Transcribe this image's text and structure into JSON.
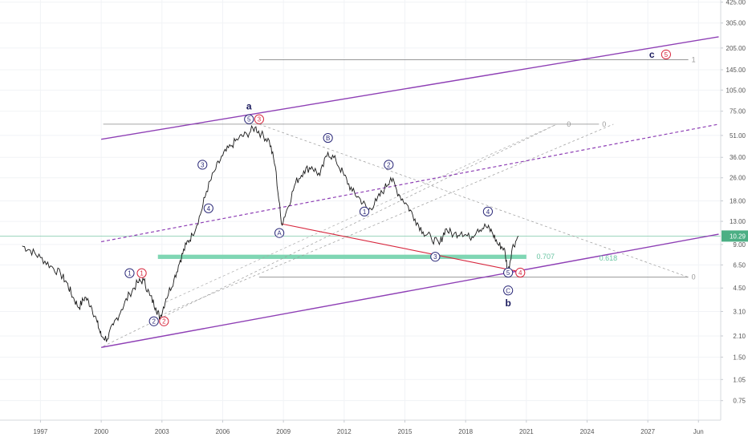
{
  "chart_data": {
    "type": "line",
    "log_scale": true,
    "grid": true,
    "x_range": [
      1995.0,
      2030.6
    ],
    "y_range": [
      0.55,
      440
    ],
    "x_ticks": [
      {
        "x": 1997.0,
        "label": "1997"
      },
      {
        "x": 2000.0,
        "label": "2000"
      },
      {
        "x": 2003.0,
        "label": "2003"
      },
      {
        "x": 2006.0,
        "label": "2006"
      },
      {
        "x": 2009.0,
        "label": "2009"
      },
      {
        "x": 2012.0,
        "label": "2012"
      },
      {
        "x": 2015.0,
        "label": "2015"
      },
      {
        "x": 2018.0,
        "label": "2018"
      },
      {
        "x": 2021.0,
        "label": "2021"
      },
      {
        "x": 2024.0,
        "label": "2024"
      },
      {
        "x": 2027.0,
        "label": "2027"
      },
      {
        "x": 2029.5,
        "label": "Jun"
      }
    ],
    "y_ticks": [
      0.75,
      1.05,
      1.5,
      2.1,
      3.1,
      4.5,
      6.5,
      9.0,
      13.0,
      18.0,
      26.0,
      36.0,
      51.0,
      75.0,
      105.0,
      145.0,
      205.0,
      305.0,
      425.0
    ],
    "last_price": {
      "value": 10.29,
      "label": "10.29"
    },
    "price_series": [
      {
        "x": 1996.1,
        "y": 8.8
      },
      {
        "x": 1996.5,
        "y": 8.2
      },
      {
        "x": 1997.0,
        "y": 7.3
      },
      {
        "x": 1997.5,
        "y": 6.4
      },
      {
        "x": 1998.0,
        "y": 5.6
      },
      {
        "x": 1998.3,
        "y": 4.9
      },
      {
        "x": 1998.6,
        "y": 3.9
      },
      {
        "x": 1998.9,
        "y": 3.3
      },
      {
        "x": 1999.2,
        "y": 3.9
      },
      {
        "x": 1999.5,
        "y": 3.4
      },
      {
        "x": 1999.8,
        "y": 2.6
      },
      {
        "x": 2000.0,
        "y": 2.1
      },
      {
        "x": 2000.3,
        "y": 2.0
      },
      {
        "x": 2000.6,
        "y": 2.5
      },
      {
        "x": 2001.0,
        "y": 3.2
      },
      {
        "x": 2001.4,
        "y": 4.1
      },
      {
        "x": 2001.8,
        "y": 4.9
      },
      {
        "x": 2002.1,
        "y": 5.1
      },
      {
        "x": 2002.4,
        "y": 4.0
      },
      {
        "x": 2002.7,
        "y": 3.3
      },
      {
        "x": 2002.9,
        "y": 2.8
      },
      {
        "x": 2003.2,
        "y": 3.8
      },
      {
        "x": 2003.6,
        "y": 5.2
      },
      {
        "x": 2003.9,
        "y": 7.0
      },
      {
        "x": 2004.2,
        "y": 9.0
      },
      {
        "x": 2004.5,
        "y": 10.5
      },
      {
        "x": 2004.9,
        "y": 14.5
      },
      {
        "x": 2005.2,
        "y": 21.0
      },
      {
        "x": 2005.6,
        "y": 29.0
      },
      {
        "x": 2006.0,
        "y": 37.0
      },
      {
        "x": 2006.4,
        "y": 43.0
      },
      {
        "x": 2006.8,
        "y": 49.0
      },
      {
        "x": 2007.2,
        "y": 52.0
      },
      {
        "x": 2007.6,
        "y": 58.0
      },
      {
        "x": 2007.9,
        "y": 52.0
      },
      {
        "x": 2008.3,
        "y": 47.0
      },
      {
        "x": 2008.6,
        "y": 31.0
      },
      {
        "x": 2008.9,
        "y": 12.5
      },
      {
        "x": 2009.2,
        "y": 16.0
      },
      {
        "x": 2009.6,
        "y": 24.0
      },
      {
        "x": 2010.0,
        "y": 29.0
      },
      {
        "x": 2010.4,
        "y": 31.0
      },
      {
        "x": 2010.8,
        "y": 27.0
      },
      {
        "x": 2011.2,
        "y": 39.0
      },
      {
        "x": 2011.6,
        "y": 34.0
      },
      {
        "x": 2012.0,
        "y": 27.0
      },
      {
        "x": 2012.4,
        "y": 21.0
      },
      {
        "x": 2012.8,
        "y": 18.5
      },
      {
        "x": 2013.2,
        "y": 15.5
      },
      {
        "x": 2013.6,
        "y": 18.0
      },
      {
        "x": 2014.0,
        "y": 22.0
      },
      {
        "x": 2014.3,
        "y": 26.0
      },
      {
        "x": 2014.7,
        "y": 20.0
      },
      {
        "x": 2015.1,
        "y": 17.0
      },
      {
        "x": 2015.5,
        "y": 13.5
      },
      {
        "x": 2015.9,
        "y": 11.0
      },
      {
        "x": 2016.3,
        "y": 10.0
      },
      {
        "x": 2016.7,
        "y": 9.0
      },
      {
        "x": 2017.0,
        "y": 11.5
      },
      {
        "x": 2017.4,
        "y": 10.5
      },
      {
        "x": 2017.8,
        "y": 11.0
      },
      {
        "x": 2018.2,
        "y": 10.0
      },
      {
        "x": 2018.6,
        "y": 11.5
      },
      {
        "x": 2019.0,
        "y": 12.0
      },
      {
        "x": 2019.3,
        "y": 11.0
      },
      {
        "x": 2019.6,
        "y": 9.0
      },
      {
        "x": 2019.9,
        "y": 8.5
      },
      {
        "x": 2020.1,
        "y": 5.8
      },
      {
        "x": 2020.3,
        "y": 8.5
      },
      {
        "x": 2020.6,
        "y": 10.29
      }
    ],
    "wave_labels": [
      {
        "text": "1",
        "x": 2001.4,
        "y": 5.7,
        "style": "blue"
      },
      {
        "text": "1",
        "x": 2002.0,
        "y": 5.7,
        "style": "red"
      },
      {
        "text": "2",
        "x": 2002.6,
        "y": 2.65,
        "style": "blue"
      },
      {
        "text": "2",
        "x": 2003.1,
        "y": 2.65,
        "style": "red"
      },
      {
        "text": "3",
        "x": 2005.0,
        "y": 32.0,
        "style": "blue"
      },
      {
        "text": "4",
        "x": 2005.3,
        "y": 16.0,
        "style": "blue"
      },
      {
        "text": "5",
        "x": 2007.3,
        "y": 66.0,
        "style": "blue"
      },
      {
        "text": "3",
        "x": 2007.8,
        "y": 66.0,
        "style": "red"
      },
      {
        "text": "a",
        "x": 2007.3,
        "y": 81.0,
        "style": "letter"
      },
      {
        "text": "A",
        "x": 2008.8,
        "y": 10.8,
        "style": "blue"
      },
      {
        "text": "B",
        "x": 2011.2,
        "y": 49.0,
        "style": "blue"
      },
      {
        "text": "1",
        "x": 2013.0,
        "y": 15.2,
        "style": "blue"
      },
      {
        "text": "2",
        "x": 2014.2,
        "y": 32.0,
        "style": "blue"
      },
      {
        "text": "3",
        "x": 2016.5,
        "y": 7.4,
        "style": "blue"
      },
      {
        "text": "4",
        "x": 2019.1,
        "y": 15.2,
        "style": "blue"
      },
      {
        "text": "5",
        "x": 2020.1,
        "y": 5.75,
        "style": "blue"
      },
      {
        "text": "4",
        "x": 2020.7,
        "y": 5.75,
        "style": "red"
      },
      {
        "text": "C",
        "x": 2020.1,
        "y": 4.33,
        "style": "blue"
      },
      {
        "text": "b",
        "x": 2020.1,
        "y": 3.55,
        "style": "letter"
      },
      {
        "text": "c",
        "x": 2027.2,
        "y": 185.0,
        "style": "letter"
      },
      {
        "text": "5",
        "x": 2027.9,
        "y": 185.0,
        "style": "red"
      }
    ],
    "upper_channel_line": {
      "x1": 2000.0,
      "y1": 48.0,
      "x2": 2030.5,
      "y2": 245.0
    },
    "lower_channel_line": {
      "x1": 2000.0,
      "y1": 1.75,
      "x2": 2030.5,
      "y2": 10.6
    },
    "dashed_channel_line": {
      "x1": 2000.0,
      "y1": 9.4,
      "x2": 2030.5,
      "y2": 61.0
    },
    "red_line": {
      "x1": 2008.9,
      "y1": 12.5,
      "x2": 2020.9,
      "y2": 5.75
    },
    "fib_top": {
      "x1": 2000.1,
      "y1": 61.0,
      "x2": 2025.3,
      "y2": 61.0,
      "label_a": "0",
      "label_b": "0"
    },
    "fib_high": {
      "x1": 2007.8,
      "y1": 170.0,
      "x2": 2029.0,
      "y2": 170.0,
      "label": "1"
    },
    "fib_low": {
      "x1": 2007.8,
      "y1": 5.35,
      "x2": 2029.0,
      "y2": 5.35,
      "label": "0"
    },
    "green_band": {
      "x1": 2002.8,
      "x2": 2021.0,
      "y1": 7.15,
      "y2": 7.65
    },
    "fib_levels": [
      {
        "label": "0.707",
        "x": 2021.5,
        "y": 7.4
      },
      {
        "label": "0.618",
        "x": 2024.6,
        "y": 7.25
      }
    ]
  }
}
